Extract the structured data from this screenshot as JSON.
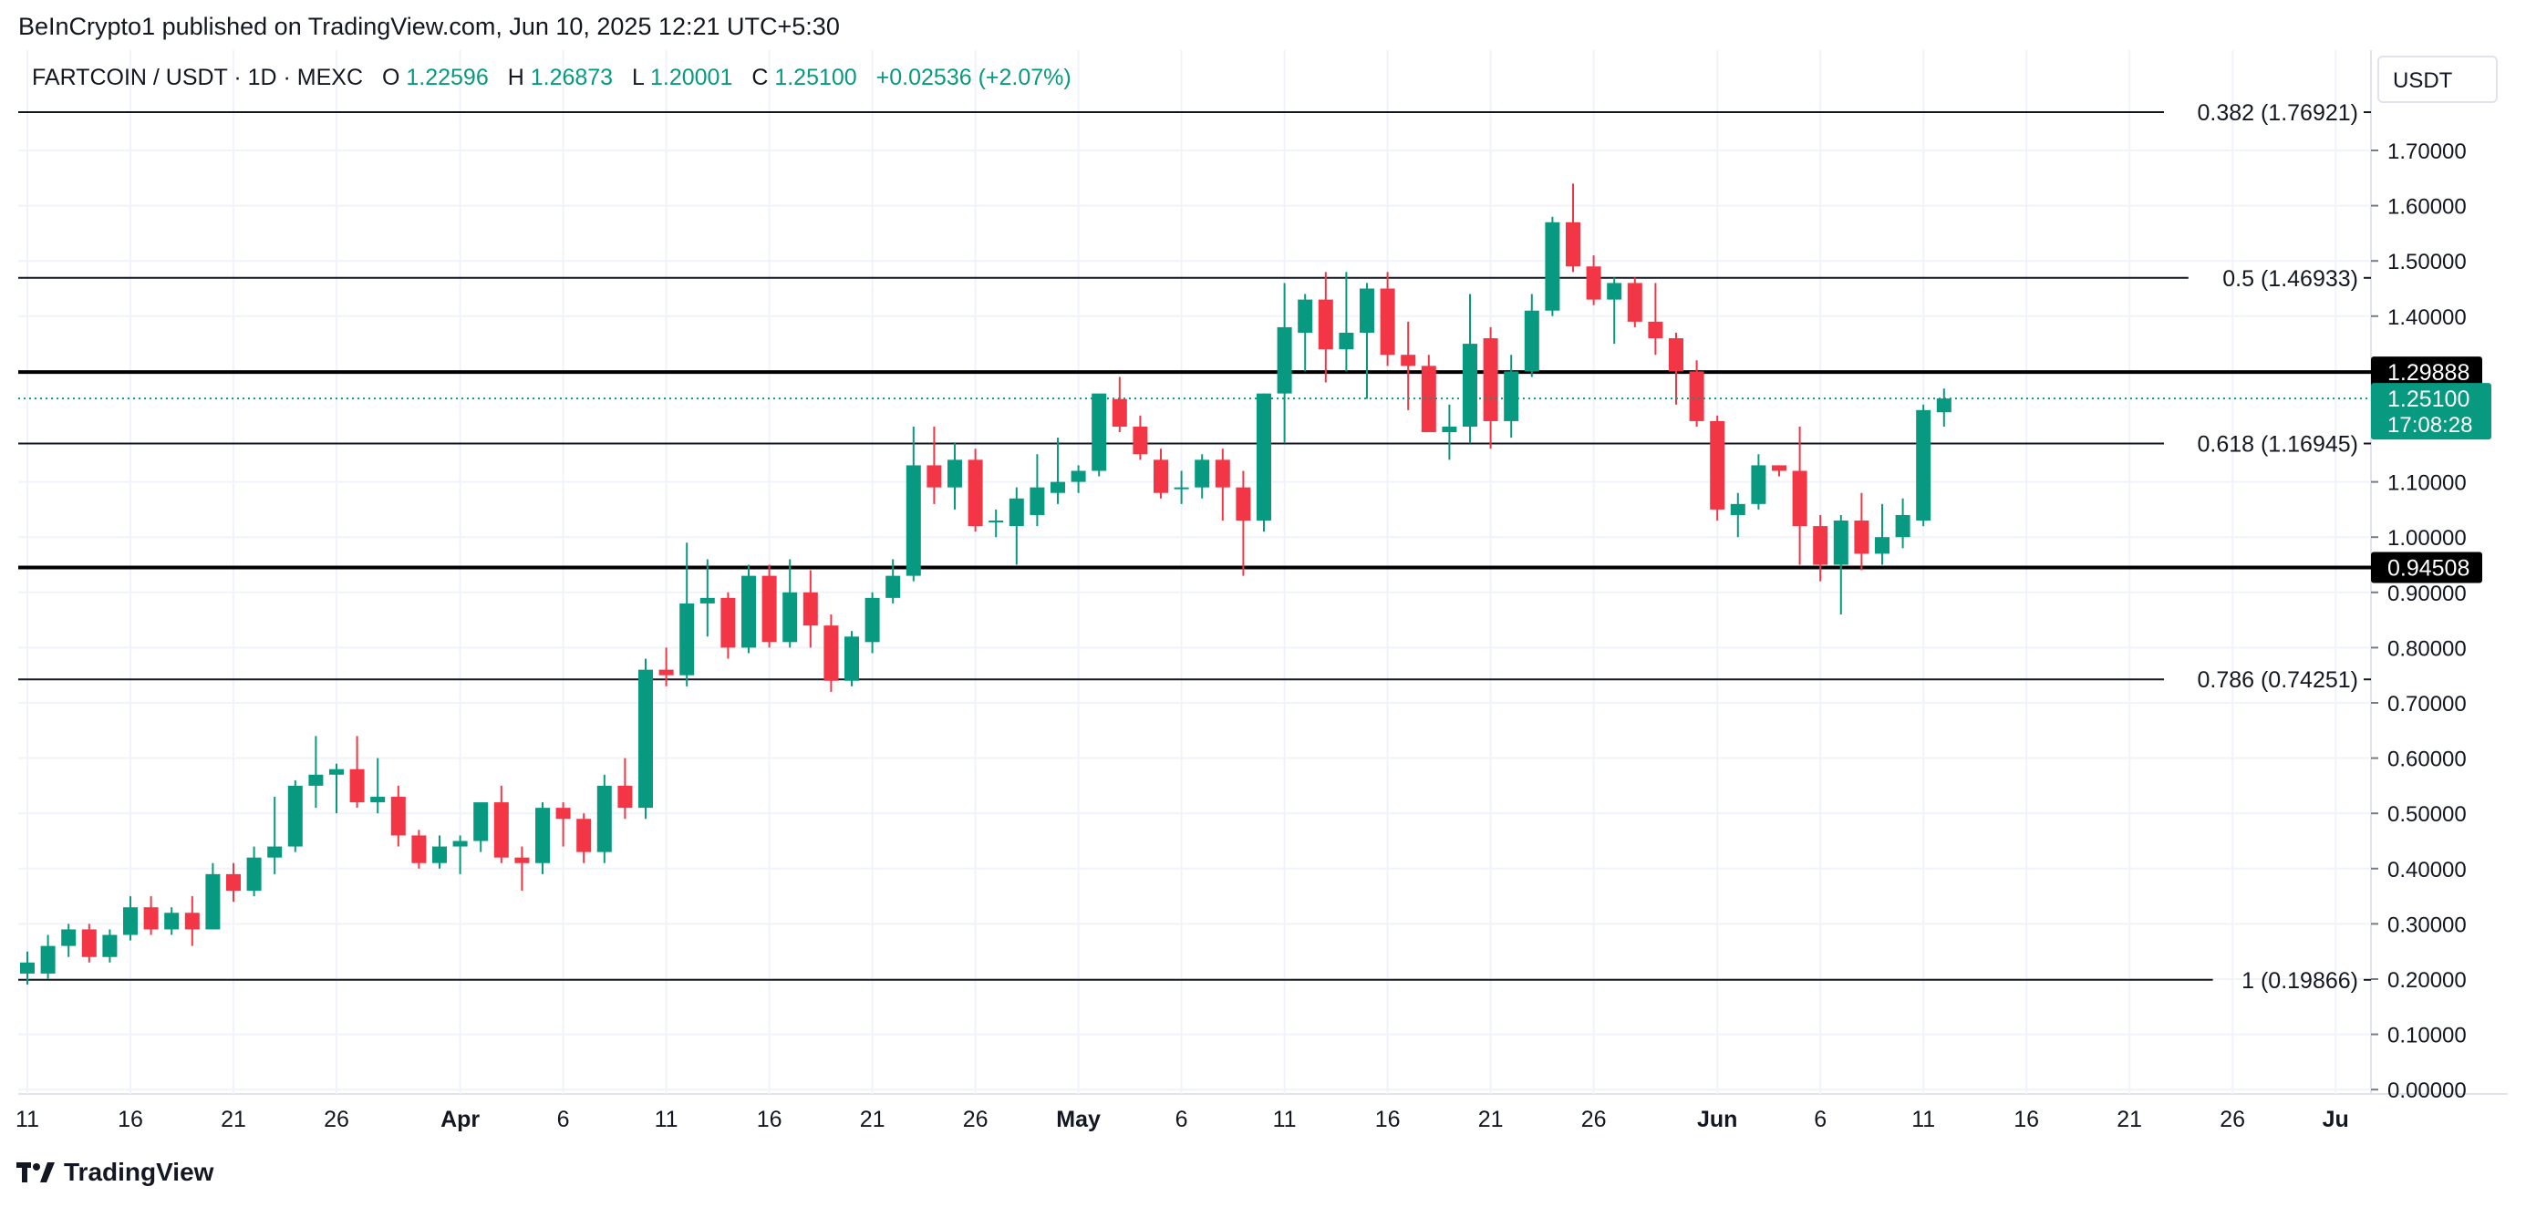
{
  "header": {
    "published": "BeInCrypto1 published on TradingView.com, Jun 10, 2025 12:21 UTC+5:30"
  },
  "legend": {
    "symbol": "FARTCOIN / USDT · 1D · MEXC",
    "o_label": "O",
    "o_value": "1.22596",
    "h_label": "H",
    "h_value": "1.26873",
    "l_label": "L",
    "l_value": "1.20001",
    "c_label": "C",
    "c_value": "1.25100",
    "change": "+0.02536 (+2.07%)"
  },
  "currency_button": "USDT",
  "price_tag": {
    "price": "1.25100",
    "countdown": "17:08:28"
  },
  "footer": {
    "brand": "TradingView"
  },
  "colors": {
    "up": "#089981",
    "down": "#f23645",
    "grid": "#f0f3fa",
    "text": "#131722"
  },
  "chart_data": {
    "type": "candlestick",
    "ylim": [
      0,
      1.8
    ],
    "y_ticks": [
      {
        "value": 1.7,
        "label": "1.70000"
      },
      {
        "value": 1.6,
        "label": "1.60000"
      },
      {
        "value": 1.5,
        "label": "1.50000"
      },
      {
        "value": 1.4,
        "label": "1.40000"
      },
      {
        "value": 1.1,
        "label": "1.10000"
      },
      {
        "value": 1.0,
        "label": "1.00000"
      },
      {
        "value": 0.9,
        "label": "0.90000"
      },
      {
        "value": 0.8,
        "label": "0.80000"
      },
      {
        "value": 0.7,
        "label": "0.70000"
      },
      {
        "value": 0.6,
        "label": "0.60000"
      },
      {
        "value": 0.5,
        "label": "0.50000"
      },
      {
        "value": 0.4,
        "label": "0.40000"
      },
      {
        "value": 0.3,
        "label": "0.30000"
      },
      {
        "value": 0.2,
        "label": "0.20000"
      },
      {
        "value": 0.1,
        "label": "0.10000"
      },
      {
        "value": 0.0,
        "label": "0.00000"
      }
    ],
    "x_ticks": [
      {
        "day": 0,
        "label": "11",
        "bold": false
      },
      {
        "day": 5,
        "label": "16",
        "bold": false
      },
      {
        "day": 10,
        "label": "21",
        "bold": false
      },
      {
        "day": 15,
        "label": "26",
        "bold": false
      },
      {
        "day": 21,
        "label": "Apr",
        "bold": true
      },
      {
        "day": 26,
        "label": "6",
        "bold": false
      },
      {
        "day": 31,
        "label": "11",
        "bold": false
      },
      {
        "day": 36,
        "label": "16",
        "bold": false
      },
      {
        "day": 41,
        "label": "21",
        "bold": false
      },
      {
        "day": 46,
        "label": "26",
        "bold": false
      },
      {
        "day": 51,
        "label": "May",
        "bold": true
      },
      {
        "day": 56,
        "label": "6",
        "bold": false
      },
      {
        "day": 61,
        "label": "11",
        "bold": false
      },
      {
        "day": 66,
        "label": "16",
        "bold": false
      },
      {
        "day": 71,
        "label": "21",
        "bold": false
      },
      {
        "day": 76,
        "label": "26",
        "bold": false
      },
      {
        "day": 82,
        "label": "Jun",
        "bold": true
      },
      {
        "day": 87,
        "label": "6",
        "bold": false
      },
      {
        "day": 92,
        "label": "11",
        "bold": false
      },
      {
        "day": 97,
        "label": "16",
        "bold": false
      },
      {
        "day": 102,
        "label": "21",
        "bold": false
      },
      {
        "day": 107,
        "label": "26",
        "bold": false
      },
      {
        "day": 112,
        "label": "Ju",
        "bold": true
      }
    ],
    "fib_levels": [
      {
        "price": 1.76921,
        "label": "0.382 (1.76921)"
      },
      {
        "price": 1.46933,
        "label": "0.5 (1.46933)"
      },
      {
        "price": 1.16945,
        "label": "0.618 (1.16945)"
      },
      {
        "price": 0.74251,
        "label": "0.786 (0.74251)"
      },
      {
        "price": 0.19866,
        "label": "1 (0.19866)"
      }
    ],
    "horizontal_lines": [
      {
        "price": 1.29888,
        "label": "1.29888"
      },
      {
        "price": 0.94508,
        "label": "0.94508"
      }
    ],
    "current_price": 1.251,
    "candles": [
      {
        "o": 0.21,
        "h": 0.25,
        "l": 0.19,
        "c": 0.23
      },
      {
        "o": 0.21,
        "h": 0.28,
        "l": 0.2,
        "c": 0.26
      },
      {
        "o": 0.26,
        "h": 0.3,
        "l": 0.24,
        "c": 0.29
      },
      {
        "o": 0.29,
        "h": 0.3,
        "l": 0.23,
        "c": 0.24
      },
      {
        "o": 0.24,
        "h": 0.29,
        "l": 0.23,
        "c": 0.28
      },
      {
        "o": 0.28,
        "h": 0.35,
        "l": 0.27,
        "c": 0.33
      },
      {
        "o": 0.33,
        "h": 0.35,
        "l": 0.28,
        "c": 0.29
      },
      {
        "o": 0.29,
        "h": 0.33,
        "l": 0.28,
        "c": 0.32
      },
      {
        "o": 0.32,
        "h": 0.35,
        "l": 0.26,
        "c": 0.29
      },
      {
        "o": 0.29,
        "h": 0.41,
        "l": 0.29,
        "c": 0.39
      },
      {
        "o": 0.39,
        "h": 0.41,
        "l": 0.34,
        "c": 0.36
      },
      {
        "o": 0.36,
        "h": 0.44,
        "l": 0.35,
        "c": 0.42
      },
      {
        "o": 0.42,
        "h": 0.53,
        "l": 0.39,
        "c": 0.44
      },
      {
        "o": 0.44,
        "h": 0.56,
        "l": 0.43,
        "c": 0.55
      },
      {
        "o": 0.55,
        "h": 0.64,
        "l": 0.51,
        "c": 0.57
      },
      {
        "o": 0.57,
        "h": 0.59,
        "l": 0.5,
        "c": 0.58
      },
      {
        "o": 0.58,
        "h": 0.64,
        "l": 0.51,
        "c": 0.52
      },
      {
        "o": 0.52,
        "h": 0.6,
        "l": 0.5,
        "c": 0.53
      },
      {
        "o": 0.53,
        "h": 0.55,
        "l": 0.44,
        "c": 0.46
      },
      {
        "o": 0.46,
        "h": 0.47,
        "l": 0.4,
        "c": 0.41
      },
      {
        "o": 0.41,
        "h": 0.46,
        "l": 0.4,
        "c": 0.44
      },
      {
        "o": 0.44,
        "h": 0.46,
        "l": 0.39,
        "c": 0.45
      },
      {
        "o": 0.45,
        "h": 0.51,
        "l": 0.43,
        "c": 0.52
      },
      {
        "o": 0.52,
        "h": 0.55,
        "l": 0.41,
        "c": 0.42
      },
      {
        "o": 0.42,
        "h": 0.44,
        "l": 0.36,
        "c": 0.41
      },
      {
        "o": 0.41,
        "h": 0.52,
        "l": 0.39,
        "c": 0.51
      },
      {
        "o": 0.51,
        "h": 0.52,
        "l": 0.44,
        "c": 0.49
      },
      {
        "o": 0.49,
        "h": 0.5,
        "l": 0.41,
        "c": 0.43
      },
      {
        "o": 0.43,
        "h": 0.57,
        "l": 0.41,
        "c": 0.55
      },
      {
        "o": 0.55,
        "h": 0.6,
        "l": 0.49,
        "c": 0.51
      },
      {
        "o": 0.51,
        "h": 0.78,
        "l": 0.49,
        "c": 0.76
      },
      {
        "o": 0.76,
        "h": 0.8,
        "l": 0.73,
        "c": 0.75
      },
      {
        "o": 0.75,
        "h": 0.99,
        "l": 0.73,
        "c": 0.88
      },
      {
        "o": 0.88,
        "h": 0.96,
        "l": 0.82,
        "c": 0.89
      },
      {
        "o": 0.89,
        "h": 0.9,
        "l": 0.78,
        "c": 0.8
      },
      {
        "o": 0.8,
        "h": 0.95,
        "l": 0.79,
        "c": 0.93
      },
      {
        "o": 0.93,
        "h": 0.95,
        "l": 0.8,
        "c": 0.81
      },
      {
        "o": 0.81,
        "h": 0.96,
        "l": 0.8,
        "c": 0.9
      },
      {
        "o": 0.9,
        "h": 0.94,
        "l": 0.8,
        "c": 0.84
      },
      {
        "o": 0.84,
        "h": 0.86,
        "l": 0.72,
        "c": 0.74
      },
      {
        "o": 0.74,
        "h": 0.83,
        "l": 0.73,
        "c": 0.82
      },
      {
        "o": 0.81,
        "h": 0.9,
        "l": 0.79,
        "c": 0.89
      },
      {
        "o": 0.89,
        "h": 0.96,
        "l": 0.88,
        "c": 0.93
      },
      {
        "o": 0.93,
        "h": 1.2,
        "l": 0.92,
        "c": 1.13
      },
      {
        "o": 1.13,
        "h": 1.2,
        "l": 1.06,
        "c": 1.09
      },
      {
        "o": 1.09,
        "h": 1.17,
        "l": 1.05,
        "c": 1.14
      },
      {
        "o": 1.14,
        "h": 1.16,
        "l": 1.01,
        "c": 1.02
      },
      {
        "o": 1.03,
        "h": 1.05,
        "l": 1.0,
        "c": 1.03
      },
      {
        "o": 1.02,
        "h": 1.09,
        "l": 0.95,
        "c": 1.07
      },
      {
        "o": 1.04,
        "h": 1.15,
        "l": 1.02,
        "c": 1.09
      },
      {
        "o": 1.08,
        "h": 1.18,
        "l": 1.06,
        "c": 1.1
      },
      {
        "o": 1.1,
        "h": 1.13,
        "l": 1.08,
        "c": 1.12
      },
      {
        "o": 1.12,
        "h": 1.25,
        "l": 1.11,
        "c": 1.26
      },
      {
        "o": 1.25,
        "h": 1.29,
        "l": 1.19,
        "c": 1.2
      },
      {
        "o": 1.2,
        "h": 1.22,
        "l": 1.14,
        "c": 1.15
      },
      {
        "o": 1.14,
        "h": 1.16,
        "l": 1.07,
        "c": 1.08
      },
      {
        "o": 1.09,
        "h": 1.12,
        "l": 1.06,
        "c": 1.09
      },
      {
        "o": 1.09,
        "h": 1.15,
        "l": 1.07,
        "c": 1.14
      },
      {
        "o": 1.14,
        "h": 1.16,
        "l": 1.03,
        "c": 1.09
      },
      {
        "o": 1.09,
        "h": 1.12,
        "l": 0.93,
        "c": 1.03
      },
      {
        "o": 1.03,
        "h": 1.26,
        "l": 1.01,
        "c": 1.26
      },
      {
        "o": 1.26,
        "h": 1.46,
        "l": 1.17,
        "c": 1.38
      },
      {
        "o": 1.37,
        "h": 1.44,
        "l": 1.3,
        "c": 1.43
      },
      {
        "o": 1.43,
        "h": 1.48,
        "l": 1.28,
        "c": 1.34
      },
      {
        "o": 1.34,
        "h": 1.48,
        "l": 1.3,
        "c": 1.37
      },
      {
        "o": 1.37,
        "h": 1.46,
        "l": 1.25,
        "c": 1.45
      },
      {
        "o": 1.45,
        "h": 1.48,
        "l": 1.31,
        "c": 1.33
      },
      {
        "o": 1.33,
        "h": 1.39,
        "l": 1.23,
        "c": 1.31
      },
      {
        "o": 1.31,
        "h": 1.33,
        "l": 1.19,
        "c": 1.19
      },
      {
        "o": 1.19,
        "h": 1.24,
        "l": 1.14,
        "c": 1.2
      },
      {
        "o": 1.2,
        "h": 1.44,
        "l": 1.17,
        "c": 1.35
      },
      {
        "o": 1.36,
        "h": 1.38,
        "l": 1.16,
        "c": 1.21
      },
      {
        "o": 1.21,
        "h": 1.33,
        "l": 1.18,
        "c": 1.3
      },
      {
        "o": 1.3,
        "h": 1.44,
        "l": 1.29,
        "c": 1.41
      },
      {
        "o": 1.41,
        "h": 1.58,
        "l": 1.4,
        "c": 1.57
      },
      {
        "o": 1.57,
        "h": 1.64,
        "l": 1.48,
        "c": 1.49
      },
      {
        "o": 1.49,
        "h": 1.51,
        "l": 1.42,
        "c": 1.43
      },
      {
        "o": 1.43,
        "h": 1.47,
        "l": 1.35,
        "c": 1.46
      },
      {
        "o": 1.46,
        "h": 1.47,
        "l": 1.38,
        "c": 1.39
      },
      {
        "o": 1.39,
        "h": 1.46,
        "l": 1.33,
        "c": 1.36
      },
      {
        "o": 1.36,
        "h": 1.37,
        "l": 1.24,
        "c": 1.3
      },
      {
        "o": 1.3,
        "h": 1.32,
        "l": 1.2,
        "c": 1.21
      },
      {
        "o": 1.21,
        "h": 1.22,
        "l": 1.03,
        "c": 1.05
      },
      {
        "o": 1.04,
        "h": 1.08,
        "l": 1.0,
        "c": 1.06
      },
      {
        "o": 1.06,
        "h": 1.15,
        "l": 1.05,
        "c": 1.13
      },
      {
        "o": 1.13,
        "h": 1.13,
        "l": 1.11,
        "c": 1.12
      },
      {
        "o": 1.12,
        "h": 1.2,
        "l": 0.95,
        "c": 1.02
      },
      {
        "o": 1.02,
        "h": 1.04,
        "l": 0.92,
        "c": 0.95
      },
      {
        "o": 0.95,
        "h": 1.04,
        "l": 0.86,
        "c": 1.03
      },
      {
        "o": 1.03,
        "h": 1.08,
        "l": 0.94,
        "c": 0.97
      },
      {
        "o": 0.97,
        "h": 1.06,
        "l": 0.95,
        "c": 1.0
      },
      {
        "o": 1.0,
        "h": 1.07,
        "l": 0.98,
        "c": 1.04
      },
      {
        "o": 1.03,
        "h": 1.24,
        "l": 1.02,
        "c": 1.23
      },
      {
        "o": 1.226,
        "h": 1.269,
        "l": 1.2,
        "c": 1.251
      }
    ]
  }
}
